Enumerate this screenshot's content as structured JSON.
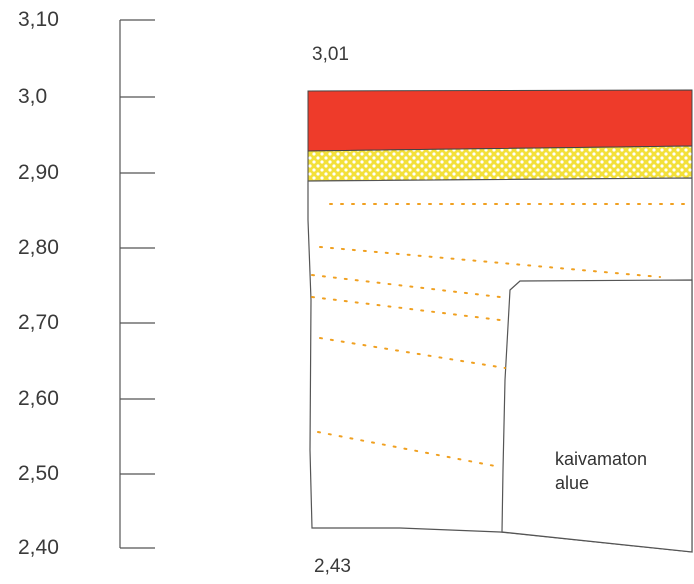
{
  "scale": {
    "ticks": [
      "3,10",
      "3,0",
      "2,90",
      "2,80",
      "2,70",
      "2,60",
      "2,50",
      "2,40"
    ]
  },
  "section": {
    "top_level": "3,01",
    "bottom_level": "2,43",
    "note_line1": "kaivamaton",
    "note_line2": "alue"
  },
  "colors": {
    "red_layer": "#ee3b2a",
    "yellow_layer": "#f3e03a",
    "dots": "#f0a020",
    "lines": "#555555"
  }
}
